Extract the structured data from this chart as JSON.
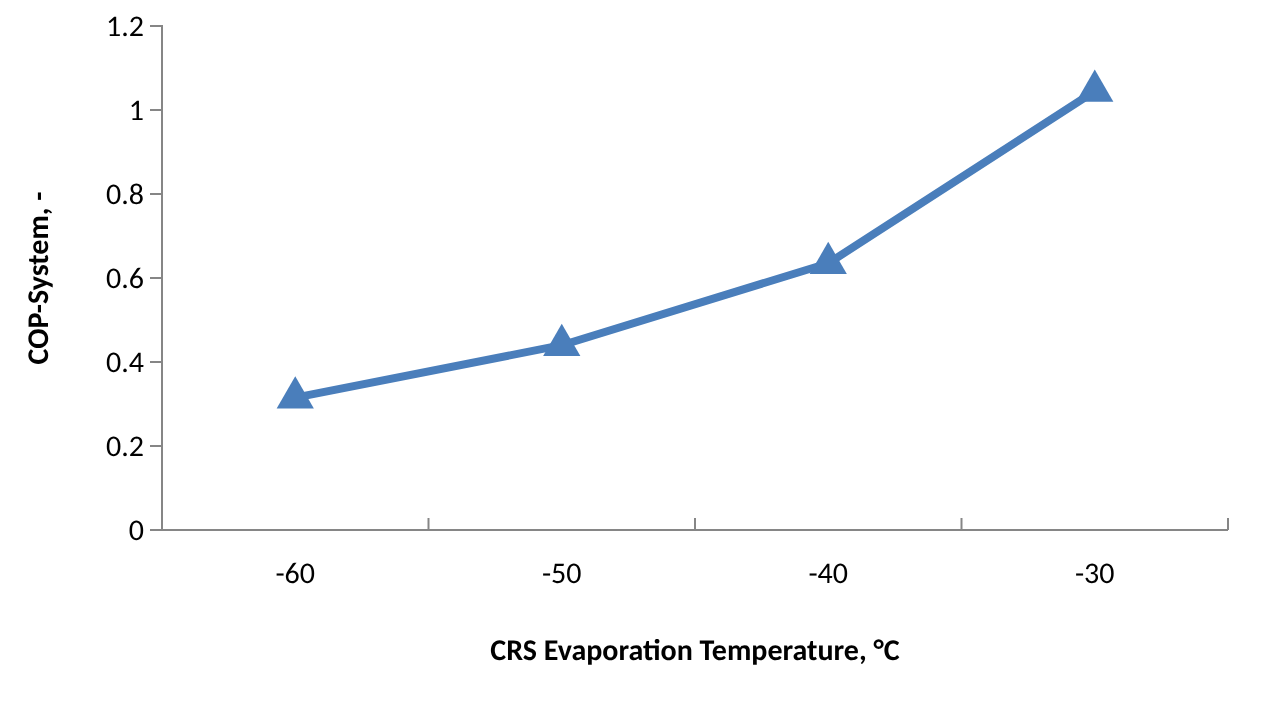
{
  "chart_data": {
    "type": "line",
    "xlabel": "CRS Evaporation Temperature, °C",
    "ylabel": "COP-System, -",
    "categories": [
      "-60",
      "-50",
      "-40",
      "-30"
    ],
    "series": [
      {
        "color": "#4a7ebb",
        "values": [
          0.315,
          0.44,
          0.635,
          1.045
        ]
      }
    ],
    "ylim": [
      0,
      1.2
    ],
    "yticks": [
      0,
      0.2,
      0.4,
      0.6,
      0.8,
      1,
      1.2
    ],
    "marker": "triangle",
    "grid": false
  }
}
